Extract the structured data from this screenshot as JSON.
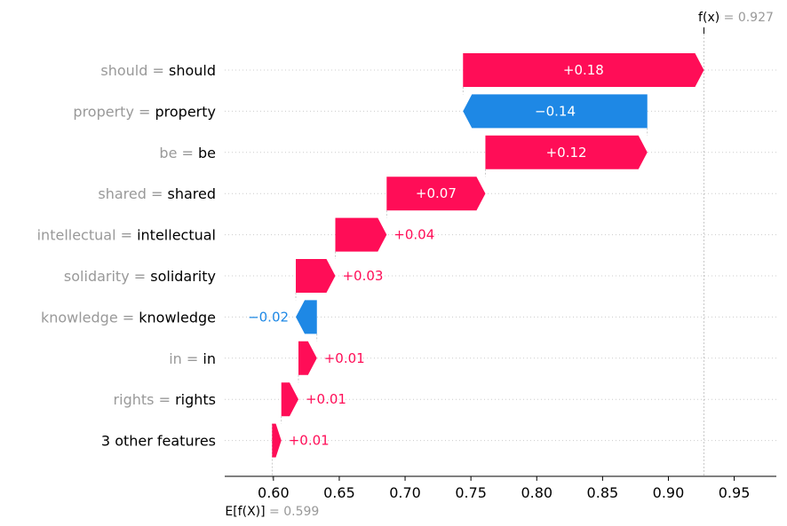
{
  "chart_data": {
    "type": "waterfall",
    "base_value": 0.599,
    "base_label": "E[f(X)] = 0.599",
    "output_value": 0.927,
    "output_label": "f(x) = 0.927",
    "xlim": [
      0.563,
      0.982
    ],
    "x_ticks": [
      0.6,
      0.65,
      0.7,
      0.75,
      0.8,
      0.85,
      0.9,
      0.95
    ],
    "x_tick_labels": [
      "0.60",
      "0.65",
      "0.70",
      "0.75",
      "0.80",
      "0.85",
      "0.90",
      "0.95"
    ],
    "features": [
      {
        "name": "should",
        "value_text": "should",
        "start": 0.744,
        "end": 0.927,
        "shap": 0.18,
        "label": "+0.18"
      },
      {
        "name": "property",
        "value_text": "property",
        "start": 0.884,
        "end": 0.744,
        "shap": -0.14,
        "label": "−0.14"
      },
      {
        "name": "be",
        "value_text": "be",
        "start": 0.761,
        "end": 0.884,
        "shap": 0.12,
        "label": "+0.12"
      },
      {
        "name": "shared",
        "value_text": "shared",
        "start": 0.686,
        "end": 0.761,
        "shap": 0.07,
        "label": "+0.07"
      },
      {
        "name": "intellectual",
        "value_text": "intellectual",
        "start": 0.647,
        "end": 0.686,
        "shap": 0.04,
        "label": "+0.04"
      },
      {
        "name": "solidarity",
        "value_text": "solidarity",
        "start": 0.617,
        "end": 0.647,
        "shap": 0.03,
        "label": "+0.03"
      },
      {
        "name": "knowledge",
        "value_text": "knowledge",
        "start": 0.633,
        "end": 0.617,
        "shap": -0.02,
        "label": "−0.02"
      },
      {
        "name": "in",
        "value_text": "in",
        "start": 0.619,
        "end": 0.633,
        "shap": 0.01,
        "label": "+0.01"
      },
      {
        "name": "rights",
        "value_text": "rights",
        "start": 0.606,
        "end": 0.619,
        "shap": 0.01,
        "label": "+0.01"
      },
      {
        "name": "3 other features",
        "value_text": "",
        "start": 0.599,
        "end": 0.606,
        "shap": 0.01,
        "label": "+0.01"
      }
    ],
    "colors": {
      "positive": "#ff0d57",
      "negative": "#1e88e5",
      "gray_text": "#999999"
    }
  }
}
